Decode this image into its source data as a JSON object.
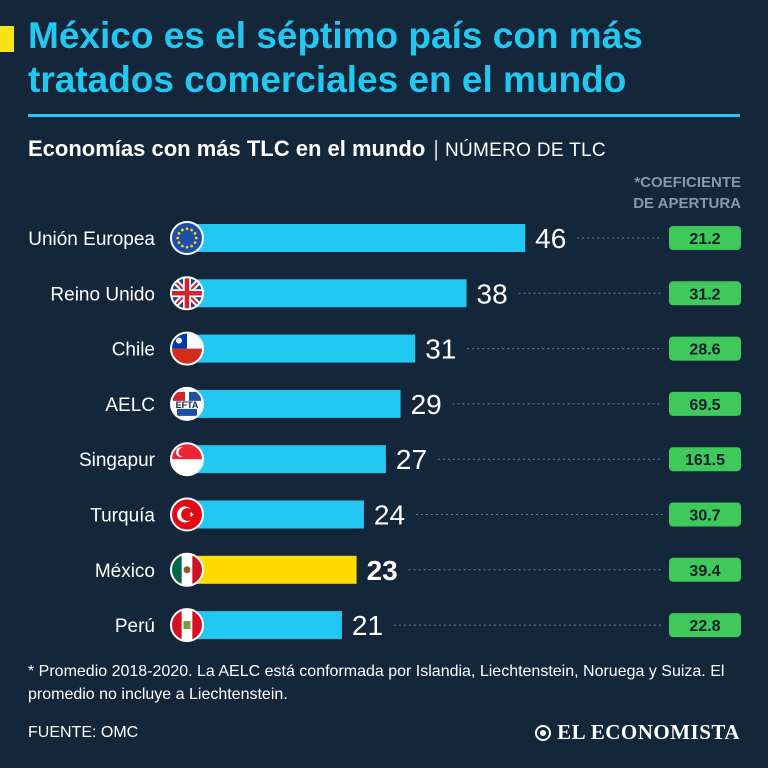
{
  "header": {
    "title": "México es el séptimo país con más tratados comerciales en el mundo",
    "subtitle_bold": "Economías con más TLC en el mundo",
    "subtitle_separator": "|",
    "subtitle_light": "NÚMERO DE TLC",
    "coef_label": "*COEFICIENTE DE APERTURA"
  },
  "chart_data": {
    "type": "bar",
    "orientation": "horizontal",
    "categories": [
      "Unión Europea",
      "Reino Unido",
      "Chile",
      "AELC",
      "Singapur",
      "Turquía",
      "México",
      "Perú"
    ],
    "values": [
      46,
      38,
      31,
      29,
      27,
      24,
      23,
      21
    ],
    "coeficiente": [
      "21.2",
      "31.2",
      "28.6",
      "69.5",
      "161.5",
      "30.7",
      "39.4",
      "22.8"
    ],
    "highlight": "México",
    "flags": [
      "eu-flag-icon",
      "uk-flag-icon",
      "chile-flag-icon",
      "efta-logo-icon",
      "singapore-flag-icon",
      "turkey-flag-icon",
      "mexico-flag-icon",
      "peru-flag-icon"
    ],
    "flag_badge_text": {
      "AELC": "EFTA"
    },
    "colors": {
      "bar": "#22c8f2",
      "highlight": "#ffdb00",
      "coef_box": "#3ec95a",
      "background": "#14263a"
    }
  },
  "footer": {
    "note": "* Promedio 2018-2020. La AELC está conformada por Islandia, Liechtenstein, Noruega y Suiza. El promedio no incluye a Liechtenstein.",
    "source": "FUENTE: OMC",
    "brand": "EL ECONOMISTA"
  }
}
